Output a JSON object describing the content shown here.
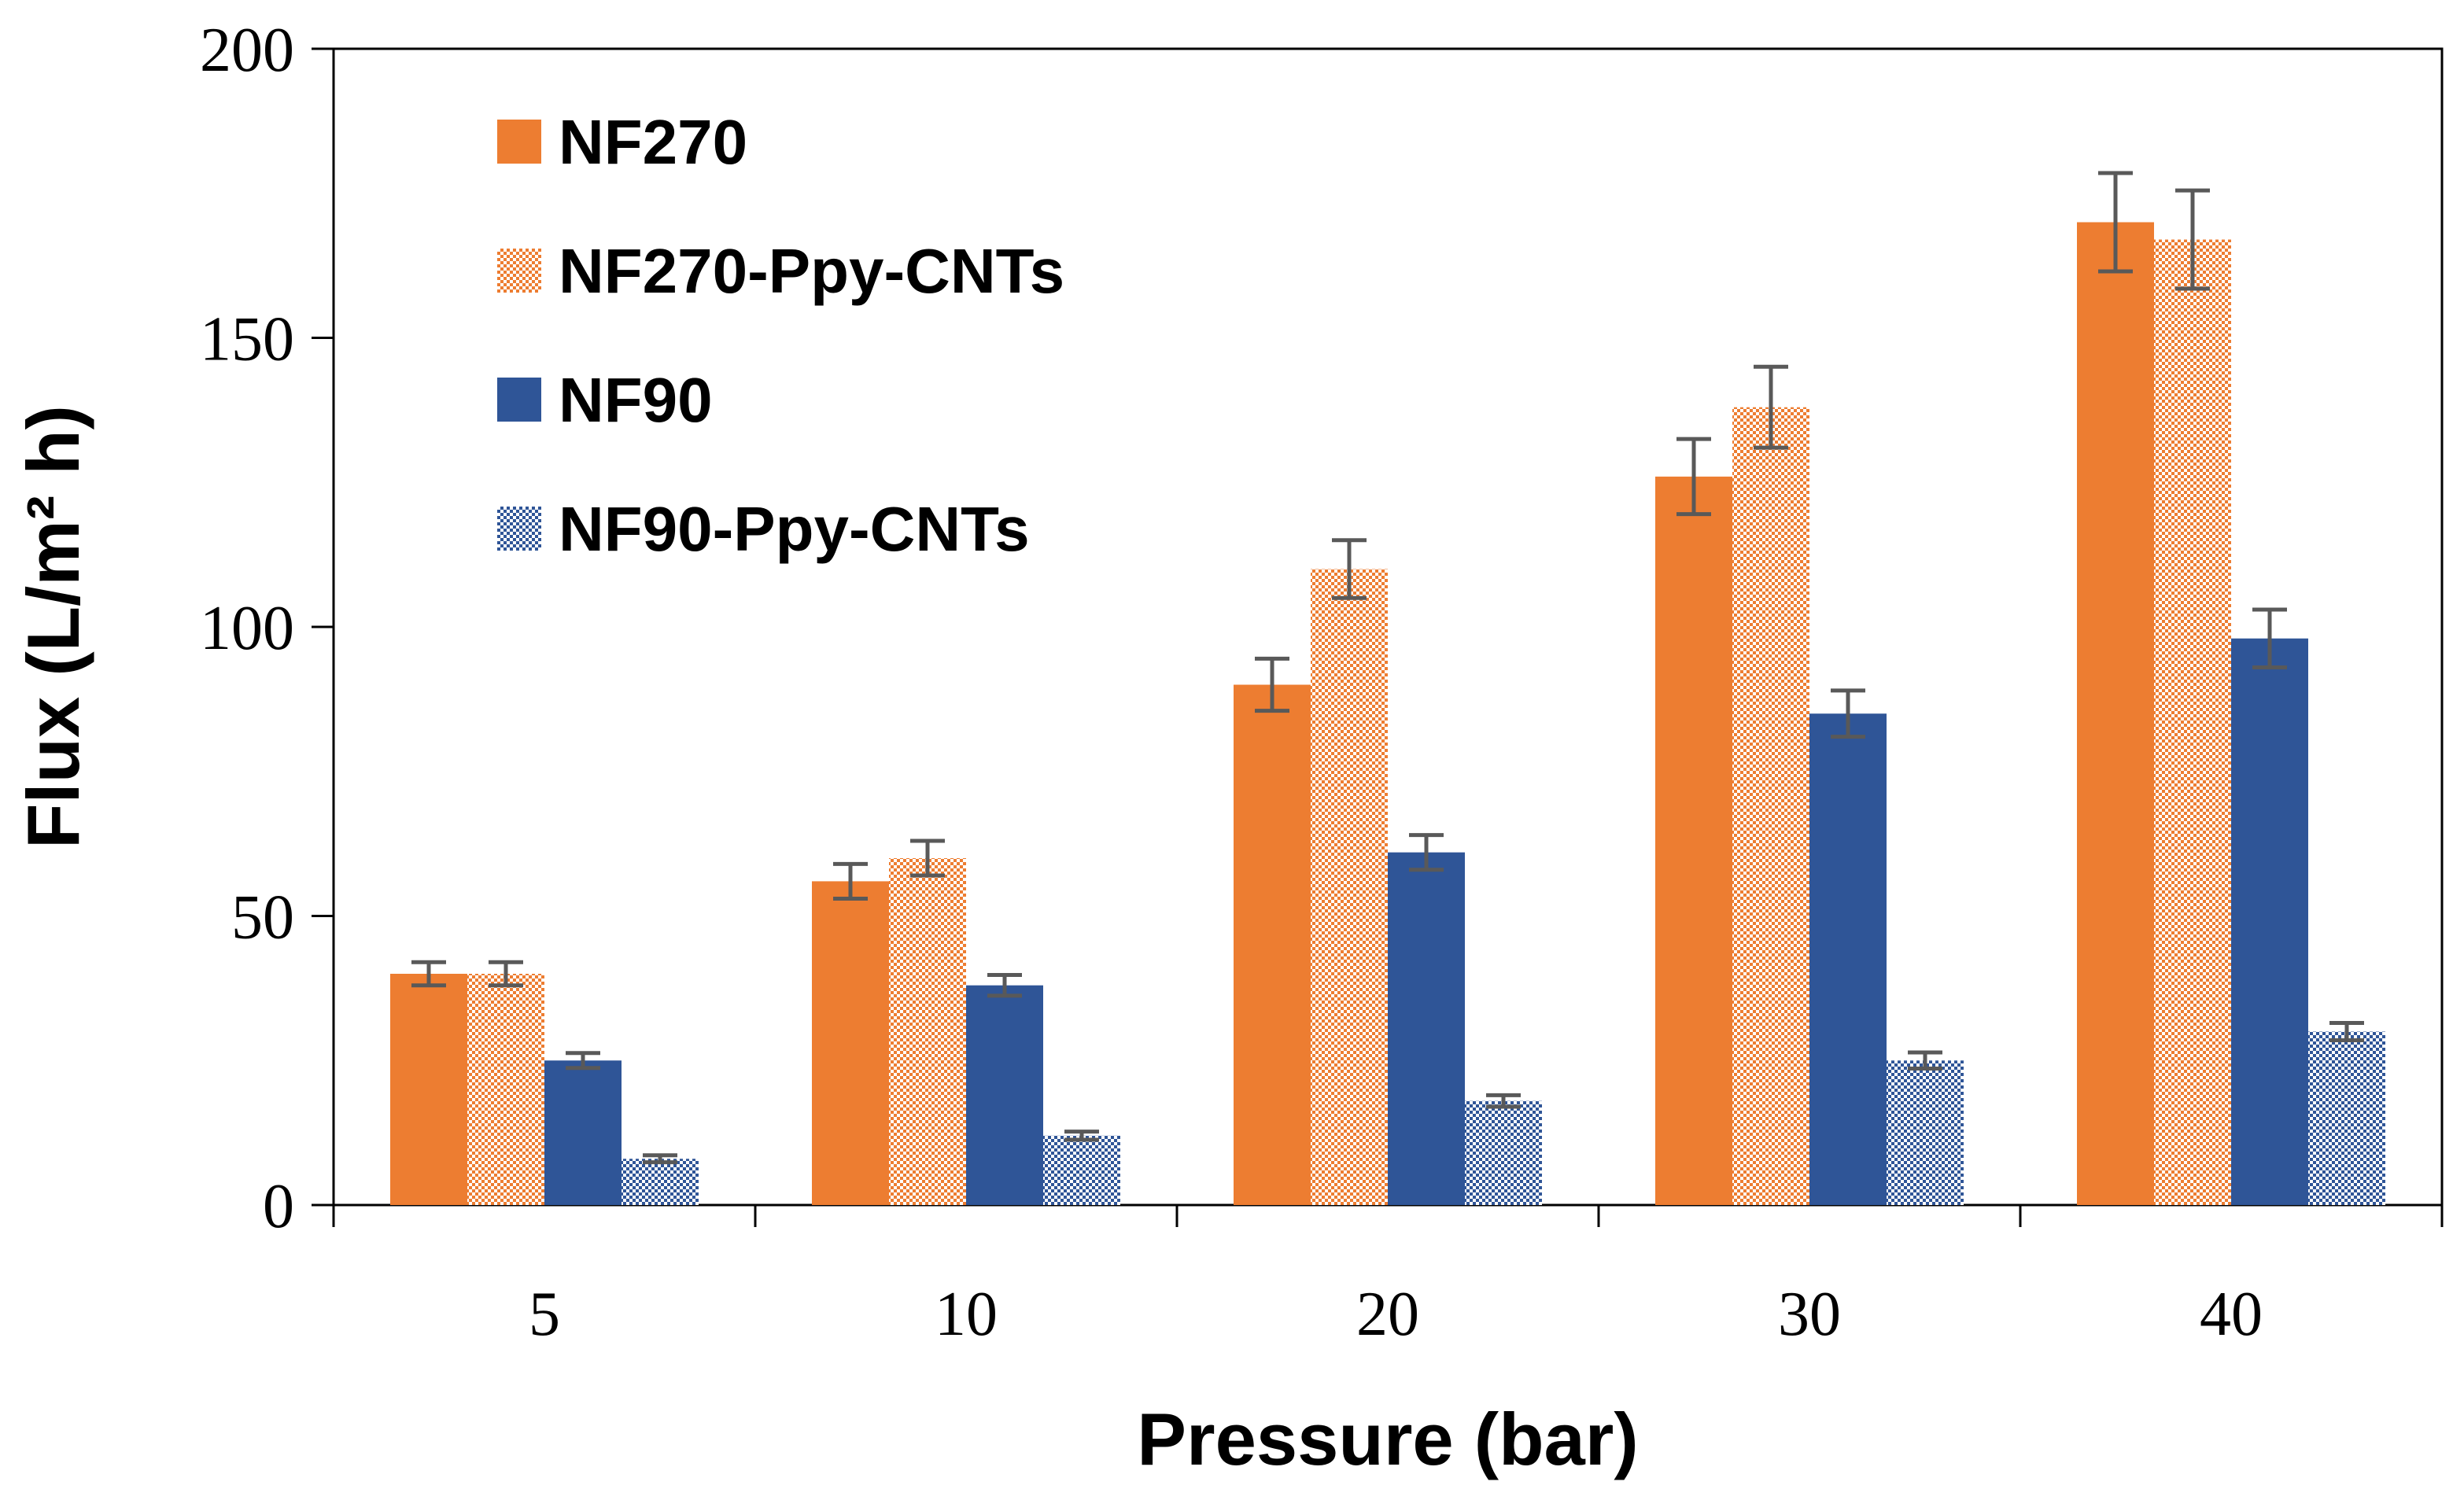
{
  "chart_data": {
    "type": "bar",
    "title": "",
    "xlabel": "Pressure (bar)",
    "ylabel": "Flux (L/m² h)",
    "ylim": [
      0,
      200
    ],
    "yticks": [
      0,
      50,
      100,
      150,
      200
    ],
    "categories": [
      "5",
      "10",
      "20",
      "30",
      "40"
    ],
    "legend_position": "top-left",
    "series": [
      {
        "name": "NF270",
        "color": "#ED7D31",
        "pattern": "solid",
        "values": [
          40,
          56,
          90,
          126,
          170
        ],
        "errors": [
          2,
          3,
          4.5,
          6.5,
          8.5
        ]
      },
      {
        "name": "NF270-Ppy-CNTs",
        "color": "#ED7D31",
        "pattern": "dotted",
        "values": [
          40,
          60,
          110,
          138,
          167
        ],
        "errors": [
          2,
          3,
          5,
          7,
          8.5
        ]
      },
      {
        "name": "NF90",
        "color": "#2F5597",
        "pattern": "solid",
        "values": [
          25,
          38,
          61,
          85,
          98
        ],
        "errors": [
          1.3,
          1.8,
          3,
          4,
          5
        ]
      },
      {
        "name": "NF90-Ppy-CNTs",
        "color": "#2F5597",
        "pattern": "dotted",
        "values": [
          8,
          12,
          18,
          25,
          30
        ],
        "errors": [
          0.6,
          0.7,
          1,
          1.4,
          1.5
        ]
      }
    ],
    "error_bar_color": "#595959"
  }
}
